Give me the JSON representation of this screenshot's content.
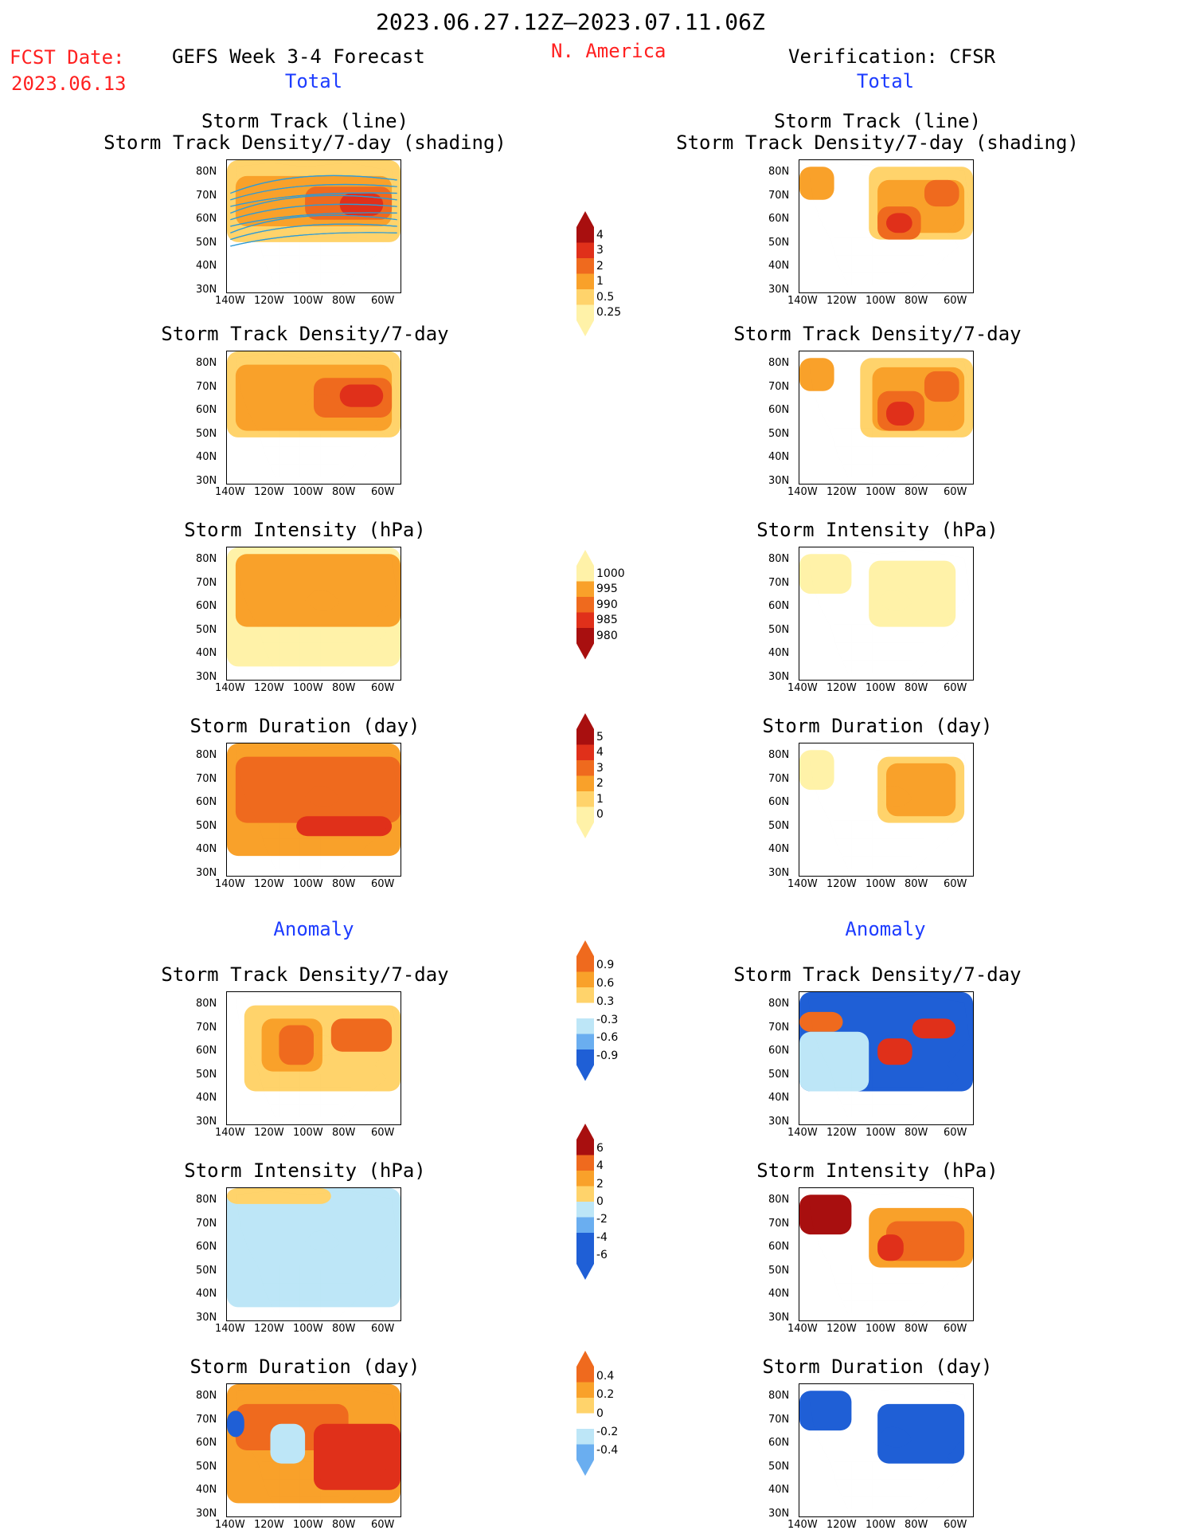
{
  "header": {
    "period": "2023.06.27.12Z–2023.07.11.06Z",
    "fcst_label": "FCST Date:",
    "fcst_date": "2023.06.13",
    "left_title": "GEFS Week 3-4 Forecast",
    "region": "N. America",
    "right_title": "Verification: CFSR"
  },
  "sections": {
    "total_left": "Total",
    "total_right": "Total",
    "anomaly_left": "Anomaly",
    "anomaly_right": "Anomaly"
  },
  "panel_titles": {
    "track_line": "Storm Track (line)",
    "track_shading": "Storm Track Density/7-day (shading)",
    "density": "Storm Track Density/7-day",
    "intensity": "Storm Intensity (hPa)",
    "duration": "Storm Duration (day)"
  },
  "axes": {
    "lat": [
      "80N",
      "70N",
      "60N",
      "50N",
      "40N",
      "30N"
    ],
    "lon": [
      "140W",
      "120W",
      "100W",
      "80W",
      "60W"
    ]
  },
  "colorbars": {
    "density_total": [
      "4",
      "3",
      "2",
      "1",
      "0.5",
      "0.25"
    ],
    "intensity_total": [
      "1000",
      "995",
      "990",
      "985",
      "980"
    ],
    "duration_total": [
      "5",
      "4",
      "3",
      "2",
      "1",
      "0"
    ],
    "density_anom": [
      "0.9",
      "0.6",
      "0.3",
      "-0.3",
      "-0.6",
      "-0.9"
    ],
    "intensity_anom": [
      "6",
      "4",
      "2",
      "0",
      "-2",
      "-4",
      "-6"
    ],
    "duration_anom": [
      "0.4",
      "0.2",
      "0",
      "-0.2",
      "-0.4"
    ]
  },
  "colors": {
    "text_red": "#ff2020",
    "text_blue": "#1d3cff",
    "pale_yellow": "#fff2a8",
    "yellow": "#ffd36b",
    "orange": "#f9a12a",
    "dark_orange": "#ef6a1e",
    "red": "#e0301a",
    "dark_red": "#a80f0f",
    "light_blue": "#bde6f7",
    "mid_blue": "#6aaef0",
    "blue": "#1f5fd6",
    "track_line": "#2e9bd6"
  }
}
